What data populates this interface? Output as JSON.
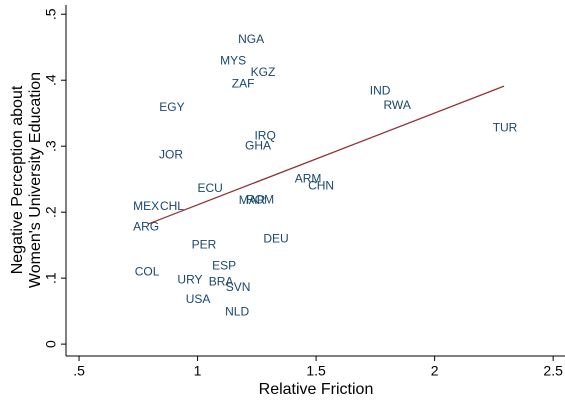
{
  "chart_data": {
    "type": "scatter",
    "xlabel": "Relative Friction",
    "ylabel": [
      "Negative Perception about",
      "Women's University Education"
    ],
    "labels": [
      "NGA",
      "MYS",
      "KGZ",
      "ZAF",
      "IND",
      "RWA",
      "EGY",
      "TUR",
      "IRQ",
      "GHA",
      "JOR",
      "ARM",
      "CHN",
      "ECU",
      "MAR",
      "ROM",
      "MEX",
      "CHL",
      "ARG",
      "DEU",
      "PER",
      "ESP",
      "COL",
      "URY",
      "BRA",
      "SVN",
      "USA",
      "NLD"
    ],
    "x": [
      1.226,
      1.15,
      1.276,
      1.192,
      1.77,
      1.842,
      0.892,
      2.297,
      1.285,
      1.255,
      0.888,
      1.466,
      1.521,
      1.053,
      1.23,
      1.264,
      0.783,
      0.892,
      0.783,
      1.331,
      1.027,
      1.112,
      0.787,
      0.968,
      1.099,
      1.171,
      1.002,
      1.167
    ],
    "values": [
      0.461,
      0.429,
      0.411,
      0.394,
      0.383,
      0.361,
      0.358,
      0.327,
      0.315,
      0.3,
      0.286,
      0.25,
      0.239,
      0.235,
      0.217,
      0.218,
      0.208,
      0.208,
      0.177,
      0.159,
      0.15,
      0.118,
      0.109,
      0.097,
      0.094,
      0.085,
      0.067,
      0.048
    ],
    "color": "#1a476f",
    "fit_line": {
      "x": [
        0.791,
        2.293
      ],
      "values": [
        0.182,
        0.391
      ],
      "color": "#90353b"
    },
    "xlim": [
      0.445,
      2.55
    ],
    "ylim": [
      -0.018,
      0.514
    ],
    "xticks": [
      {
        "value": 0.5,
        "label": ".5"
      },
      1,
      1.5,
      2,
      2.5
    ],
    "yticks": [
      0,
      {
        "value": 0.1,
        "label": ".1"
      },
      {
        "value": 0.2,
        "label": ".2"
      },
      {
        "value": 0.3,
        "label": ".3"
      },
      {
        "value": 0.4,
        "label": ".4"
      },
      {
        "value": 0.5,
        "label": ".5"
      }
    ],
    "grid": false
  }
}
